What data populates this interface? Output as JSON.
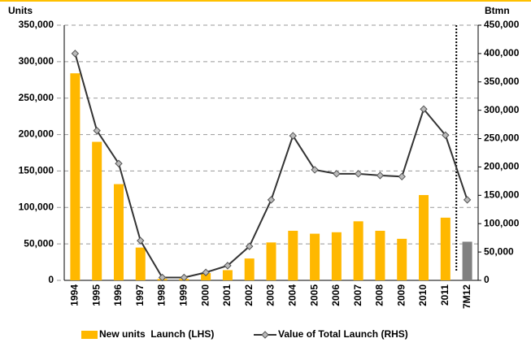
{
  "chart_data": {
    "type": "combo",
    "y_title": "Units",
    "y2_title": "Btmn",
    "categories": [
      "1994",
      "1995",
      "1996",
      "1997",
      "1998",
      "1999",
      "2000",
      "2001",
      "2002",
      "2003",
      "2004",
      "2005",
      "2006",
      "2007",
      "2008",
      "2009",
      "2010",
      "2011",
      "7M12"
    ],
    "series": [
      {
        "name": "New units  Launch (LHS)",
        "type": "bar",
        "color": "#FFB800",
        "colors": [
          "#FFB800",
          "#FFB800",
          "#FFB800",
          "#FFB800",
          "#FFB800",
          "#FFB800",
          "#FFB800",
          "#FFB800",
          "#FFB800",
          "#FFB800",
          "#FFB800",
          "#FFB800",
          "#FFB800",
          "#FFB800",
          "#FFB800",
          "#FFB800",
          "#FFB800",
          "#FFB800",
          "#808080"
        ],
        "values": [
          284000,
          190000,
          132000,
          45000,
          2000,
          2000,
          10000,
          14000,
          30000,
          52000,
          68000,
          64000,
          66000,
          81000,
          68000,
          57000,
          117000,
          86000,
          53000
        ]
      },
      {
        "name": "Value of Total Launch (RHS)",
        "type": "line",
        "axis": "y2",
        "color": "#333333",
        "values": [
          400000,
          264000,
          206000,
          70000,
          5000,
          5000,
          14000,
          26000,
          60000,
          142000,
          255000,
          195000,
          188000,
          188000,
          185000,
          183000,
          302000,
          256000,
          142000
        ]
      }
    ],
    "ylim": [
      0,
      350000
    ],
    "yticks": [
      {
        "value": 0,
        "label": "0"
      },
      {
        "value": 50000,
        "label": "50,000"
      },
      {
        "value": 100000,
        "label": "100,000"
      },
      {
        "value": 150000,
        "label": "150,000"
      },
      {
        "value": 200000,
        "label": "200,000"
      },
      {
        "value": 250000,
        "label": "250,000"
      },
      {
        "value": 300000,
        "label": "300,000"
      },
      {
        "value": 350000,
        "label": "350,000"
      }
    ],
    "y2lim": [
      0,
      450000
    ],
    "y2ticks": [
      {
        "value": 0,
        "label": "0"
      },
      {
        "value": 50000,
        "label": "50,000"
      },
      {
        "value": 100000,
        "label": "100,000"
      },
      {
        "value": 150000,
        "label": "150,000"
      },
      {
        "value": 200000,
        "label": "200,000"
      },
      {
        "value": 250000,
        "label": "250,000"
      },
      {
        "value": 300000,
        "label": "300,000"
      },
      {
        "value": 350000,
        "label": "350,000"
      },
      {
        "value": 400000,
        "label": "400,000"
      },
      {
        "value": 450000,
        "label": "450,000"
      }
    ],
    "grid": true,
    "legend": "bottom"
  }
}
